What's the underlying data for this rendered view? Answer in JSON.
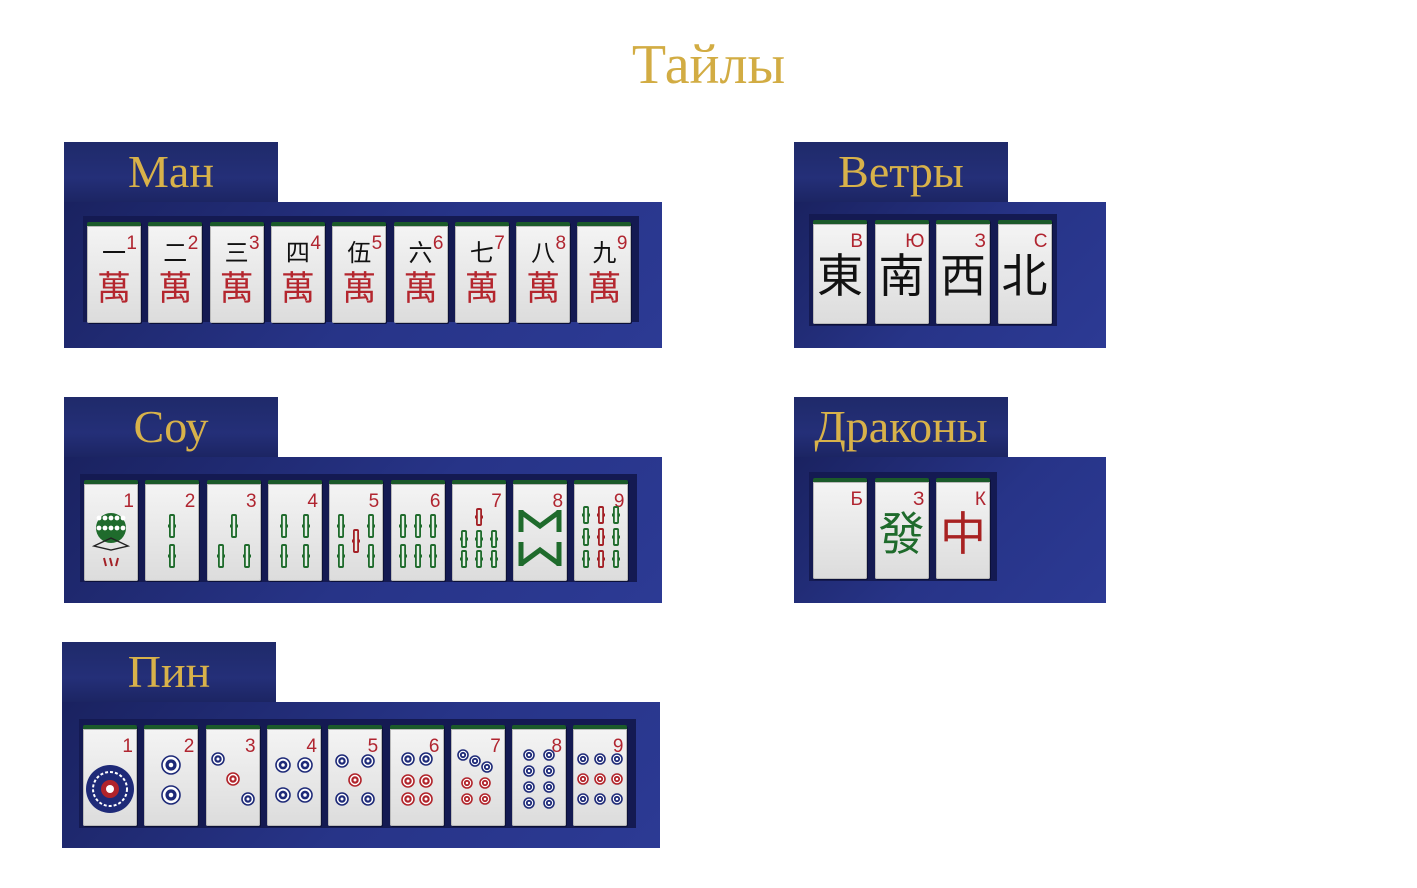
{
  "page": {
    "title": "Тайлы"
  },
  "colors": {
    "title_gold": "#d2ac43",
    "panel_navy": "#242f78",
    "tile_face": "#f0f0f0",
    "tile_back": "#1b5a2a",
    "index_red": "#b02530",
    "sou_green": "#1f6b2c",
    "pin_blue": "#1e2a78"
  },
  "sections": {
    "man": {
      "label": "Ман",
      "tiles": [
        {
          "index": "1",
          "numeral": "一",
          "suit": "萬"
        },
        {
          "index": "2",
          "numeral": "二",
          "suit": "萬"
        },
        {
          "index": "3",
          "numeral": "三",
          "suit": "萬"
        },
        {
          "index": "4",
          "numeral": "四",
          "suit": "萬"
        },
        {
          "index": "5",
          "numeral": "伍",
          "suit": "萬"
        },
        {
          "index": "6",
          "numeral": "六",
          "suit": "萬"
        },
        {
          "index": "7",
          "numeral": "七",
          "suit": "萬"
        },
        {
          "index": "8",
          "numeral": "八",
          "suit": "萬"
        },
        {
          "index": "9",
          "numeral": "九",
          "suit": "萬"
        }
      ]
    },
    "winds": {
      "label": "Ветры",
      "tiles": [
        {
          "index": "В",
          "glyph": "東"
        },
        {
          "index": "Ю",
          "glyph": "南"
        },
        {
          "index": "З",
          "glyph": "西"
        },
        {
          "index": "С",
          "glyph": "北"
        }
      ]
    },
    "sou": {
      "label": "Соу",
      "tiles": [
        {
          "index": "1",
          "icon": "bird-icon"
        },
        {
          "index": "2",
          "icon": "bamboo-2-icon"
        },
        {
          "index": "3",
          "icon": "bamboo-3-icon"
        },
        {
          "index": "4",
          "icon": "bamboo-4-icon"
        },
        {
          "index": "5",
          "icon": "bamboo-5-icon"
        },
        {
          "index": "6",
          "icon": "bamboo-6-icon"
        },
        {
          "index": "7",
          "icon": "bamboo-7-icon"
        },
        {
          "index": "8",
          "icon": "bamboo-8-icon"
        },
        {
          "index": "9",
          "icon": "bamboo-9-icon"
        }
      ]
    },
    "dragons": {
      "label": "Драконы",
      "tiles": [
        {
          "index": "Б",
          "glyph": ""
        },
        {
          "index": "З",
          "glyph": "發"
        },
        {
          "index": "К",
          "glyph": "中"
        }
      ]
    },
    "pin": {
      "label": "Пин",
      "tiles": [
        {
          "index": "1",
          "icon": "circle-1-icon"
        },
        {
          "index": "2",
          "icon": "circle-2-icon"
        },
        {
          "index": "3",
          "icon": "circle-3-icon"
        },
        {
          "index": "4",
          "icon": "circle-4-icon"
        },
        {
          "index": "5",
          "icon": "circle-5-icon"
        },
        {
          "index": "6",
          "icon": "circle-6-icon"
        },
        {
          "index": "7",
          "icon": "circle-7-icon"
        },
        {
          "index": "8",
          "icon": "circle-8-icon"
        },
        {
          "index": "9",
          "icon": "circle-9-icon"
        }
      ]
    }
  }
}
